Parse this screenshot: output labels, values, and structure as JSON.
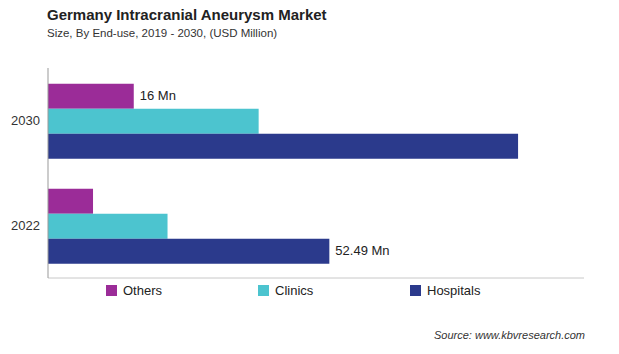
{
  "chart_data": {
    "type": "bar",
    "title": "Germany Intracranial Aneurysm Market",
    "subtitle": "Size, By End-use, 2019 - 2030, (USD Million)",
    "source": "Source: www.kbvresearch.com",
    "orientation": "horizontal",
    "categories": [
      "2030",
      "2022"
    ],
    "series": [
      {
        "name": "Others",
        "color": "#9b2c98",
        "values": [
          16,
          8.4
        ],
        "value_labels": [
          "16 Mn",
          null
        ]
      },
      {
        "name": "Clinics",
        "color": "#4cc4cf",
        "values": [
          39.3,
          22.3
        ],
        "value_labels": [
          null,
          null
        ]
      },
      {
        "name": "Hospitals",
        "color": "#2b3a8c",
        "values": [
          87.7,
          52.49
        ],
        "value_labels": [
          null,
          "52.49 Mn"
        ]
      }
    ],
    "xlim": [
      0,
      100
    ],
    "grid": false,
    "data_labels": true,
    "tick_labels": "y",
    "legend": "bottom"
  }
}
